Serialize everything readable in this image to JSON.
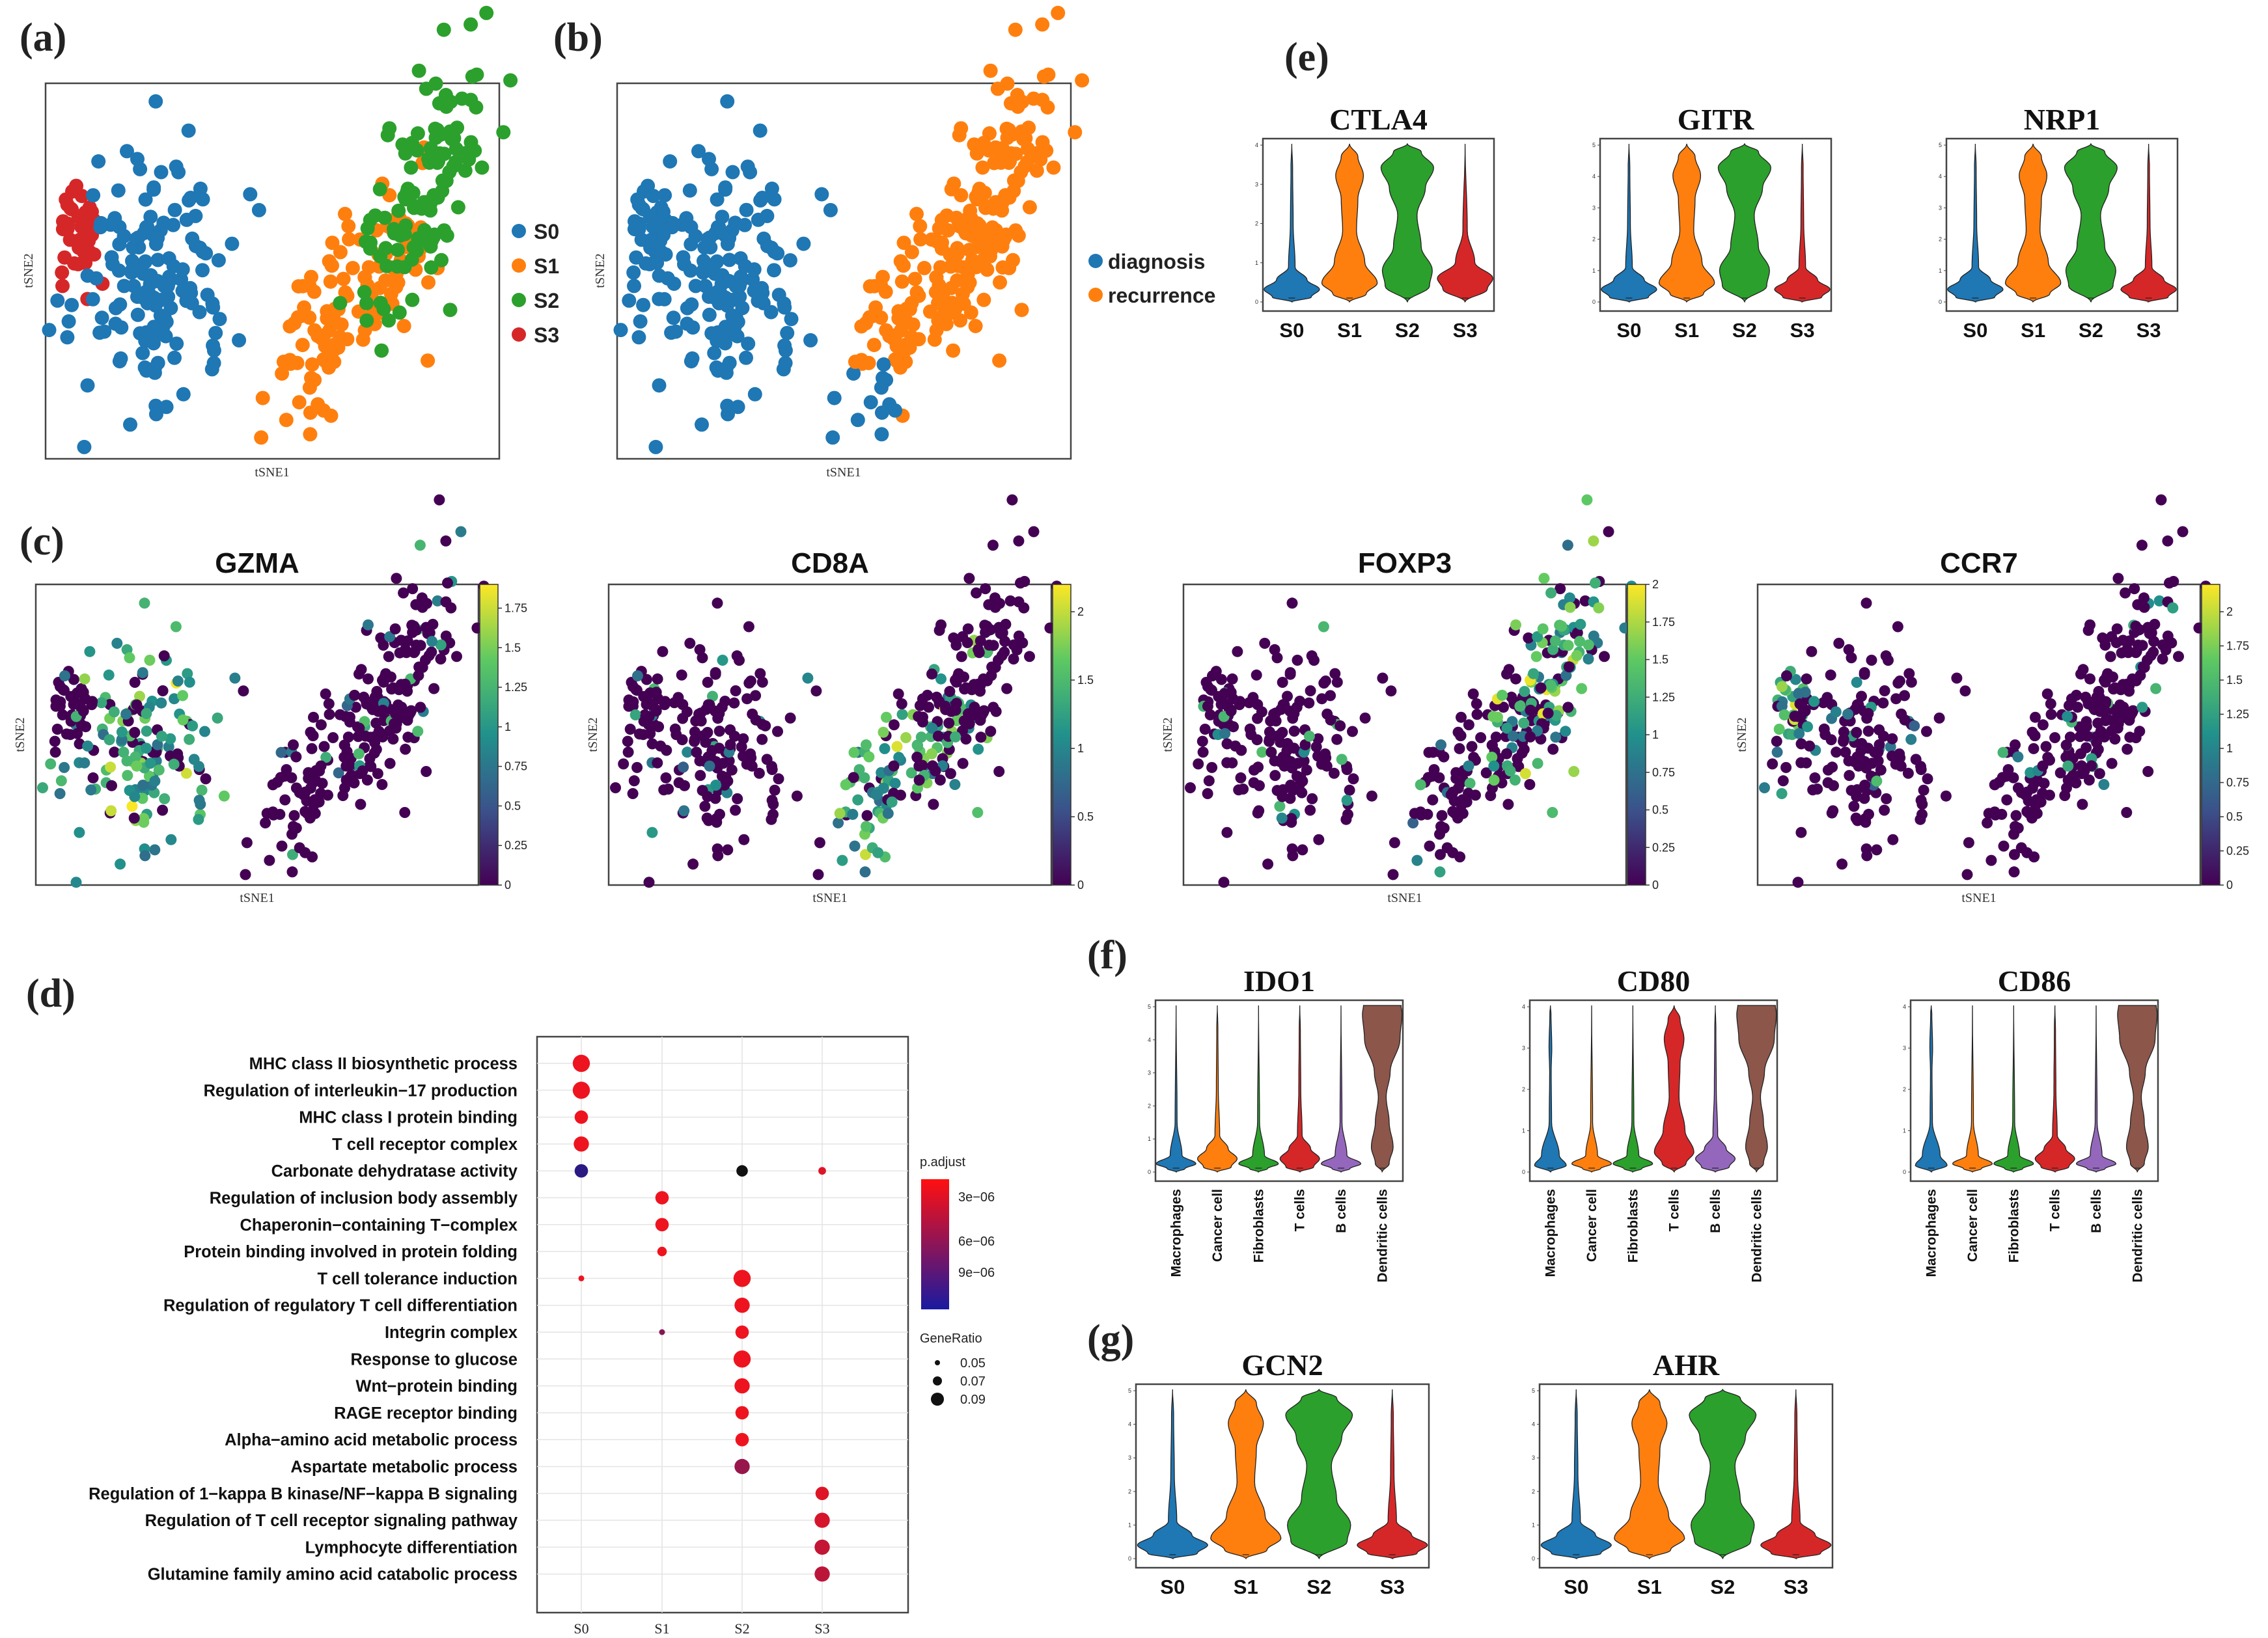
{
  "panel_labels": {
    "a": "(a)",
    "b": "(b)",
    "c": "(c)",
    "d": "(d)",
    "e": "(e)",
    "f": "(f)",
    "g": "(g)"
  },
  "axis_labels": {
    "x": "tSNE1",
    "y": "tSNE2"
  },
  "colors": {
    "S0": "#1f77b4",
    "S1": "#ff7f0e",
    "S2": "#2ca02c",
    "S3": "#d62728",
    "diagnosis": "#1f77b4",
    "recurrence": "#ff7f0e",
    "IDO_macrophages": "#1f77b4",
    "IDO_cancer": "#ff7f0e",
    "IDO_fibroblasts": "#2ca02c",
    "IDO_tcells": "#d62728",
    "IDO_bcells": "#9467bd",
    "IDO_dendritic": "#8c564b"
  },
  "chart_data": [
    {
      "id": "a",
      "type": "scatter",
      "title": "",
      "xlabel": "tSNE1",
      "ylabel": "tSNE2",
      "legend": [
        "S0",
        "S1",
        "S2",
        "S3"
      ],
      "legend_placement": "right",
      "clusters": [
        {
          "name": "S3",
          "center": [
            -42,
            -8
          ],
          "n": 40,
          "spread": [
            7,
            10
          ]
        },
        {
          "name": "S0",
          "center": [
            -25,
            -10
          ],
          "n": 150,
          "spread": [
            14,
            22
          ]
        },
        {
          "name": "S1",
          "center": [
            18,
            -14
          ],
          "n": 120,
          "spread": [
            11,
            20
          ]
        },
        {
          "name": "S2",
          "center": [
            33,
            22
          ],
          "n": 120,
          "spread": [
            9,
            22
          ]
        }
      ]
    },
    {
      "id": "b",
      "type": "scatter",
      "title": "",
      "xlabel": "tSNE1",
      "ylabel": "tSNE2",
      "legend": [
        "diagnosis",
        "recurrence"
      ],
      "legend_placement": "right",
      "clusters": [
        {
          "name": "diagnosis",
          "center": [
            -25,
            -10
          ],
          "n": 190,
          "spread": [
            18,
            22
          ]
        },
        {
          "name": "recurrence",
          "center": [
            26,
            5
          ],
          "n": 220,
          "spread": [
            14,
            30
          ]
        }
      ]
    },
    {
      "id": "c",
      "type": "scatter",
      "subtype": "feature-plot",
      "xlabel": "tSNE1",
      "ylabel": "tSNE2",
      "plots": [
        {
          "gene": "GZMA",
          "colorbar_ticks": [
            "0",
            "0.25",
            "0.5",
            "0.75",
            "1",
            "1.25",
            "1.5",
            "1.75"
          ],
          "max": 1.9,
          "high_in": "S0"
        },
        {
          "gene": "CD8A",
          "colorbar_ticks": [
            "0",
            "0.5",
            "1",
            "1.5",
            "2"
          ],
          "max": 2.2,
          "high_in": "S1"
        },
        {
          "gene": "FOXP3",
          "colorbar_ticks": [
            "0",
            "0.25",
            "0.5",
            "0.75",
            "1",
            "1.25",
            "1.5",
            "1.75",
            "2"
          ],
          "max": 2.0,
          "high_in": "S2"
        },
        {
          "gene": "CCR7",
          "colorbar_ticks": [
            "0",
            "0.25",
            "0.5",
            "0.75",
            "1",
            "1.25",
            "1.5",
            "1.75",
            "2"
          ],
          "max": 2.2,
          "high_in": "S3"
        }
      ]
    },
    {
      "id": "d",
      "type": "scatter",
      "subtype": "dotplot",
      "categories": [
        "S0",
        "S1",
        "S2",
        "S3"
      ],
      "terms": [
        "MHC class II biosynthetic process",
        "Regulation of interleukin−17 production",
        "MHC class I protein binding",
        "T cell receptor complex",
        "Carbonate dehydratase activity",
        "Regulation of inclusion body assembly",
        "Chaperonin−containing T−complex",
        "Protein binding involved in protein folding",
        "T cell tolerance induction",
        "Regulation of regulatory T cell differentiation",
        "Integrin complex",
        "Response to glucose",
        "Wnt−protein binding",
        "RAGE receptor binding",
        "Alpha−amino acid metabolic process",
        "Aspartate metabolic process",
        "Regulation of 1−kappa B kinase/NF−kappa B signaling",
        "Regulation of T cell receptor signaling pathway",
        "Lymphocyte differentiation",
        "Glutamine family amino acid catabolic process"
      ],
      "points": [
        {
          "term": 0,
          "cat": 0,
          "ratio": 0.1,
          "padj": 1e-07
        },
        {
          "term": 1,
          "cat": 0,
          "ratio": 0.1,
          "padj": 1e-07
        },
        {
          "term": 2,
          "cat": 0,
          "ratio": 0.08,
          "padj": 1e-07
        },
        {
          "term": 3,
          "cat": 0,
          "ratio": 0.09,
          "padj": 1e-07
        },
        {
          "term": 4,
          "cat": 0,
          "ratio": 0.08,
          "padj": 1.1e-05
        },
        {
          "term": 4,
          "cat": 2,
          "ratio": 0.07,
          "padj": 1.2e-05
        },
        {
          "term": 4,
          "cat": 3,
          "ratio": 0.05,
          "padj": 1e-06
        },
        {
          "term": 5,
          "cat": 1,
          "ratio": 0.08,
          "padj": 1e-07
        },
        {
          "term": 6,
          "cat": 1,
          "ratio": 0.08,
          "padj": 1e-07
        },
        {
          "term": 7,
          "cat": 1,
          "ratio": 0.06,
          "padj": 1e-07
        },
        {
          "term": 8,
          "cat": 0,
          "ratio": 0.04,
          "padj": 1e-07
        },
        {
          "term": 8,
          "cat": 2,
          "ratio": 0.1,
          "padj": 1e-07
        },
        {
          "term": 9,
          "cat": 2,
          "ratio": 0.09,
          "padj": 1e-07
        },
        {
          "term": 10,
          "cat": 1,
          "ratio": 0.04,
          "padj": 6e-06
        },
        {
          "term": 10,
          "cat": 2,
          "ratio": 0.08,
          "padj": 1e-07
        },
        {
          "term": 11,
          "cat": 2,
          "ratio": 0.1,
          "padj": 1e-07
        },
        {
          "term": 12,
          "cat": 2,
          "ratio": 0.09,
          "padj": 1e-07
        },
        {
          "term": 13,
          "cat": 2,
          "ratio": 0.08,
          "padj": 1e-07
        },
        {
          "term": 14,
          "cat": 2,
          "ratio": 0.08,
          "padj": 1e-07
        },
        {
          "term": 15,
          "cat": 2,
          "ratio": 0.09,
          "padj": 5e-06
        },
        {
          "term": 16,
          "cat": 3,
          "ratio": 0.08,
          "padj": 1e-06
        },
        {
          "term": 17,
          "cat": 3,
          "ratio": 0.09,
          "padj": 1.5e-06
        },
        {
          "term": 18,
          "cat": 3,
          "ratio": 0.09,
          "padj": 2.5e-06
        },
        {
          "term": 19,
          "cat": 3,
          "ratio": 0.09,
          "padj": 3e-06
        }
      ],
      "legend": {
        "color_title": "p.adjust",
        "color_ticks": [
          "3e−06",
          "6e−06",
          "9e−06"
        ],
        "size_title": "GeneRatio",
        "size_ticks": [
          "0.05",
          "0.07",
          "0.09"
        ]
      }
    },
    {
      "id": "e",
      "type": "violin",
      "categories": [
        "S0",
        "S1",
        "S2",
        "S3"
      ],
      "plots": [
        {
          "gene": "CTLA4",
          "ylim": [
            0,
            4
          ]
        },
        {
          "gene": "GITR",
          "ylim": [
            0,
            5
          ]
        },
        {
          "gene": "NRP1",
          "ylim": [
            0,
            5
          ]
        }
      ]
    },
    {
      "id": "f",
      "type": "violin",
      "categories": [
        "Macrophages",
        "Cancer cell",
        "Fibroblasts",
        "T cells",
        "B cells",
        "Dendritic cells"
      ],
      "plots": [
        {
          "gene": "IDO1",
          "ylim": [
            0,
            5
          ]
        },
        {
          "gene": "CD80",
          "ylim": [
            0,
            4
          ]
        },
        {
          "gene": "CD86",
          "ylim": [
            0,
            4
          ]
        }
      ]
    },
    {
      "id": "g",
      "type": "violin",
      "categories": [
        "S0",
        "S1",
        "S2",
        "S3"
      ],
      "plots": [
        {
          "gene": "GCN2",
          "ylim": [
            0,
            5
          ]
        },
        {
          "gene": "AHR",
          "ylim": [
            0,
            5
          ]
        }
      ]
    }
  ]
}
